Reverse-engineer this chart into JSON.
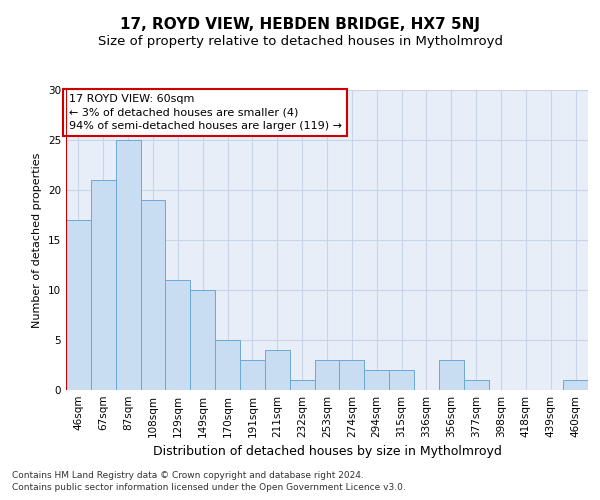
{
  "title1": "17, ROYD VIEW, HEBDEN BRIDGE, HX7 5NJ",
  "title2": "Size of property relative to detached houses in Mytholmroyd",
  "xlabel": "Distribution of detached houses by size in Mytholmroyd",
  "ylabel": "Number of detached properties",
  "categories": [
    "46sqm",
    "67sqm",
    "87sqm",
    "108sqm",
    "129sqm",
    "149sqm",
    "170sqm",
    "191sqm",
    "211sqm",
    "232sqm",
    "253sqm",
    "274sqm",
    "294sqm",
    "315sqm",
    "336sqm",
    "356sqm",
    "377sqm",
    "398sqm",
    "418sqm",
    "439sqm",
    "460sqm"
  ],
  "values": [
    17,
    21,
    25,
    19,
    11,
    10,
    5,
    3,
    4,
    1,
    3,
    3,
    2,
    2,
    0,
    3,
    1,
    0,
    0,
    0,
    1
  ],
  "bar_color": "#c9ddf2",
  "bar_edge_color": "#6aaad4",
  "highlight_color": "#cc0000",
  "annotation_text": "17 ROYD VIEW: 60sqm\n← 3% of detached houses are smaller (4)\n94% of semi-detached houses are larger (119) →",
  "annotation_box_color": "#ffffff",
  "annotation_box_edge": "#cc0000",
  "ylim": [
    0,
    30
  ],
  "yticks": [
    0,
    5,
    10,
    15,
    20,
    25,
    30
  ],
  "grid_color": "#c8d4e8",
  "background_color": "#e8eef8",
  "footer_line1": "Contains HM Land Registry data © Crown copyright and database right 2024.",
  "footer_line2": "Contains public sector information licensed under the Open Government Licence v3.0.",
  "title1_fontsize": 11,
  "title2_fontsize": 9.5,
  "xlabel_fontsize": 9,
  "ylabel_fontsize": 8,
  "tick_fontsize": 7.5,
  "annotation_fontsize": 8,
  "footer_fontsize": 6.5
}
